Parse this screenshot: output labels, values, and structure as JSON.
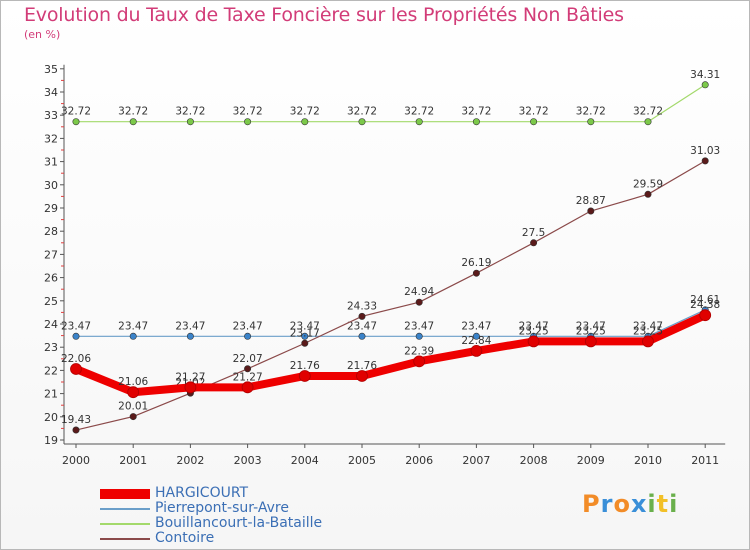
{
  "chart_data": {
    "type": "line",
    "title": "Evolution du Taux de Taxe Foncière sur les Propriétés Non Bâties",
    "unit_label": "(en %)",
    "x": [
      "2000",
      "2001",
      "2002",
      "2003",
      "2004",
      "2005",
      "2006",
      "2007",
      "2008",
      "2009",
      "2010",
      "2011"
    ],
    "yticks": [
      19,
      20,
      21,
      22,
      23,
      24,
      25,
      26,
      27,
      28,
      29,
      30,
      31,
      32,
      33,
      34,
      35
    ],
    "ylim": [
      19,
      35
    ],
    "grid": false,
    "series": [
      {
        "name": "HARGICOURT",
        "color": "#ee0000",
        "marker_color": "#e00000",
        "emphasis": true,
        "values": [
          22.06,
          21.06,
          21.27,
          21.27,
          21.76,
          21.76,
          22.39,
          22.84,
          23.25,
          23.25,
          23.25,
          24.38
        ],
        "labels": [
          "22.06",
          "21.06",
          "21.27",
          "21.27",
          "21.76",
          "21.76",
          "22.39",
          "22.84",
          "23.25",
          "23.25",
          "23.25",
          "24.38"
        ]
      },
      {
        "name": "Pierrepont-sur-Avre",
        "color": "#6a9ec9",
        "marker_color": "#3b83c9",
        "emphasis": false,
        "values": [
          23.47,
          23.47,
          23.47,
          23.47,
          23.47,
          23.47,
          23.47,
          23.47,
          23.47,
          23.47,
          23.47,
          24.61
        ],
        "labels": [
          "23.47",
          "23.47",
          "23.47",
          "23.47",
          "23.47",
          "23.47",
          "23.47",
          "23.47",
          "23.47",
          "23.47",
          "23.47",
          "24.61"
        ]
      },
      {
        "name": "Bouillancourt-la-Bataille",
        "color": "#a3d96b",
        "marker_color": "#7cc94a",
        "emphasis": false,
        "values": [
          32.72,
          32.72,
          32.72,
          32.72,
          32.72,
          32.72,
          32.72,
          32.72,
          32.72,
          32.72,
          32.72,
          34.31
        ],
        "labels": [
          "32.72",
          "32.72",
          "32.72",
          "32.72",
          "32.72",
          "32.72",
          "32.72",
          "32.72",
          "32.72",
          "32.72",
          "32.72",
          "34.31"
        ]
      },
      {
        "name": "Contoire",
        "color": "#8b4a4a",
        "marker_color": "#5a1a1a",
        "emphasis": false,
        "values": [
          19.43,
          20.01,
          21.02,
          22.07,
          23.17,
          24.33,
          24.94,
          26.19,
          27.5,
          28.87,
          29.59,
          31.03
        ],
        "labels": [
          "19.43",
          "20.01",
          "21.02",
          "22.07",
          "23.17",
          "24.33",
          "24.94",
          "26.19",
          "27.5",
          "28.87",
          "29.59",
          "31.03"
        ]
      }
    ],
    "legend_position": "bottom-left"
  },
  "branding": {
    "logo_letters": [
      "P",
      "r",
      "o",
      "x",
      "i",
      "t",
      "i"
    ],
    "logo_colors": [
      "#f28c28",
      "#3a8fd8",
      "#f28c28",
      "#3a8fd8",
      "#6ab04c",
      "#f2c028",
      "#6ab04c"
    ]
  }
}
